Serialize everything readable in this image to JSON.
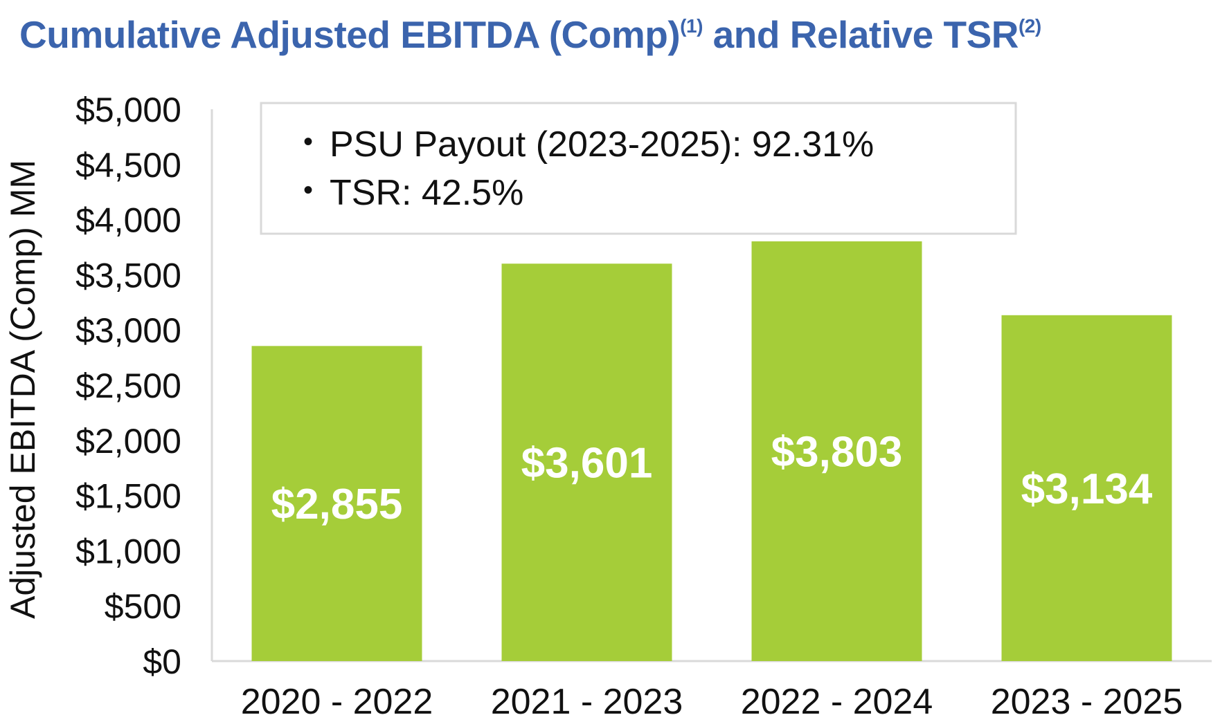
{
  "title": {
    "main": "Cumulative Adjusted EBITDA (Comp)",
    "sup1": "(1)",
    "middle": " and Relative TSR",
    "sup2": "(2)"
  },
  "notes": [
    "PSU Payout (2023-2025): 92.31%",
    "TSR: 42.5%"
  ],
  "colors": {
    "title": "#3b64ad",
    "bar": "#a5cd39",
    "bar_label": "#ffffff",
    "axis_line": "#d9d9d9",
    "note_border": "#d9d9d9"
  },
  "chart_data": {
    "type": "bar",
    "categories": [
      "2020 - 2022",
      "2021 - 2023",
      "2022 - 2024",
      "2023 - 2025"
    ],
    "values": [
      2855,
      3601,
      3803,
      3134
    ],
    "value_labels": [
      "$2,855",
      "$3,601",
      "$3,803",
      "$3,134"
    ],
    "ylabel": "Adjusted EBITDA (Comp) MM",
    "ylim": [
      0,
      5000
    ],
    "yticks": [
      0,
      500,
      1000,
      1500,
      2000,
      2500,
      3000,
      3500,
      4000,
      4500,
      5000
    ],
    "ytick_labels": [
      "$0",
      "$500",
      "$1,000",
      "$1,500",
      "$2,000",
      "$2,500",
      "$3,000",
      "$3,500",
      "$4,000",
      "$4,500",
      "$5,000"
    ],
    "grid": false,
    "legend": "none"
  }
}
